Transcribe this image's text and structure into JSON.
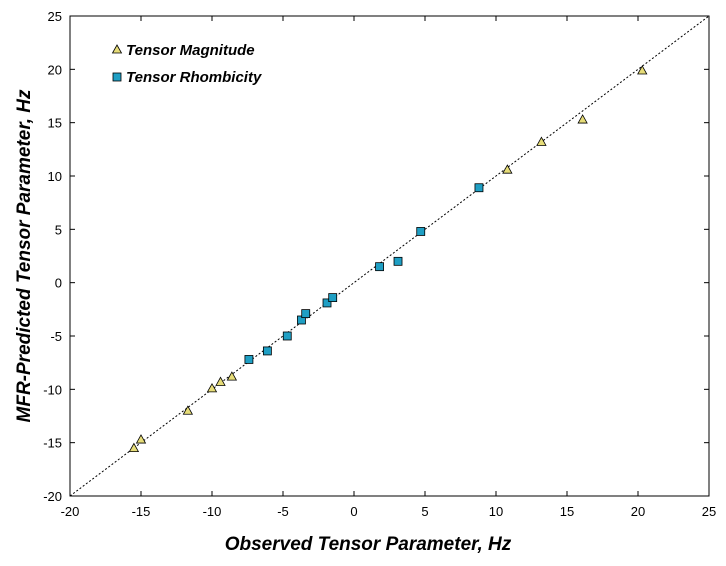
{
  "chart_data": {
    "type": "scatter",
    "title": "",
    "xlabel": "Observed Tensor Parameter, Hz",
    "ylabel": "MFR-Predicted Tensor Parameter, Hz",
    "xlim": [
      -20,
      25
    ],
    "ylim": [
      -20,
      25
    ],
    "xticks": [
      "-20",
      "-15",
      "-10",
      "-5",
      "0",
      "5",
      "10",
      "15",
      "20",
      "25"
    ],
    "yticks": [
      "-20",
      "-15",
      "-10",
      "-5",
      "0",
      "5",
      "10",
      "15",
      "20",
      "25"
    ],
    "grid": false,
    "legend_position": "top-left",
    "reference_line": "y = x",
    "series": [
      {
        "name": "Tensor Magnitude",
        "marker": "triangle",
        "color": "#e6dc78",
        "points": [
          [
            -15.5,
            -15.5
          ],
          [
            -15.0,
            -14.7
          ],
          [
            -11.7,
            -12.0
          ],
          [
            -10.0,
            -9.9
          ],
          [
            -9.4,
            -9.3
          ],
          [
            -8.6,
            -8.8
          ],
          [
            10.8,
            10.6
          ],
          [
            13.2,
            13.2
          ],
          [
            16.1,
            15.3
          ],
          [
            20.3,
            19.9
          ]
        ]
      },
      {
        "name": "Tensor Rhombicity",
        "marker": "square",
        "color": "#1f9fc4",
        "points": [
          [
            -7.4,
            -7.2
          ],
          [
            -6.1,
            -6.4
          ],
          [
            -4.7,
            -5.0
          ],
          [
            -3.7,
            -3.5
          ],
          [
            -3.4,
            -2.9
          ],
          [
            -1.9,
            -1.9
          ],
          [
            -1.5,
            -1.4
          ],
          [
            1.8,
            1.5
          ],
          [
            3.1,
            2.0
          ],
          [
            4.7,
            4.8
          ],
          [
            8.8,
            8.9
          ]
        ]
      }
    ]
  }
}
